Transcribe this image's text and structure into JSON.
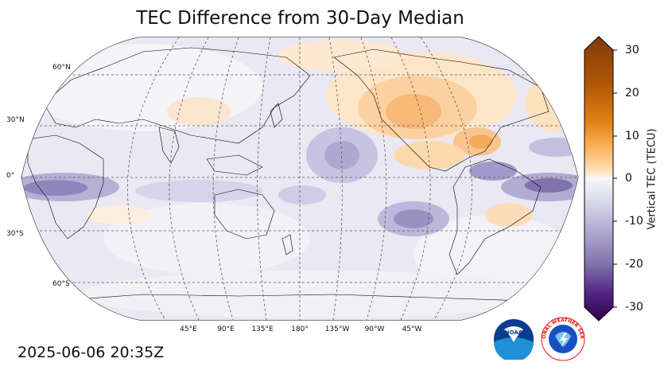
{
  "title": "TEC Difference from 30-Day Median",
  "timestamp": "2025-06-06 20:35Z",
  "lat_labels": [
    "60°N",
    "30°N",
    "0°",
    "30°S",
    "60°S"
  ],
  "lon_labels": [
    "45°E",
    "90°E",
    "135°E",
    "180°",
    "135°W",
    "90°W",
    "45°W"
  ],
  "colorbar": {
    "label": "Vertical TEC (TECU)",
    "ticks": [
      "30",
      "20",
      "10",
      "0",
      "-10",
      "-20",
      "-30"
    ],
    "min": -30,
    "max": 30,
    "colors": {
      "positive_max": "#7f3b08",
      "positive_mid": "#e08214",
      "positive_low": "#fdb863",
      "neutral": "#f7f7f7",
      "negative_low": "#b2abd2",
      "negative_mid": "#8073ac",
      "negative_max": "#2d004b"
    }
  },
  "logos": {
    "noaa": "NOAA",
    "nws": "NATIONAL WEATHER SERVICE"
  }
}
